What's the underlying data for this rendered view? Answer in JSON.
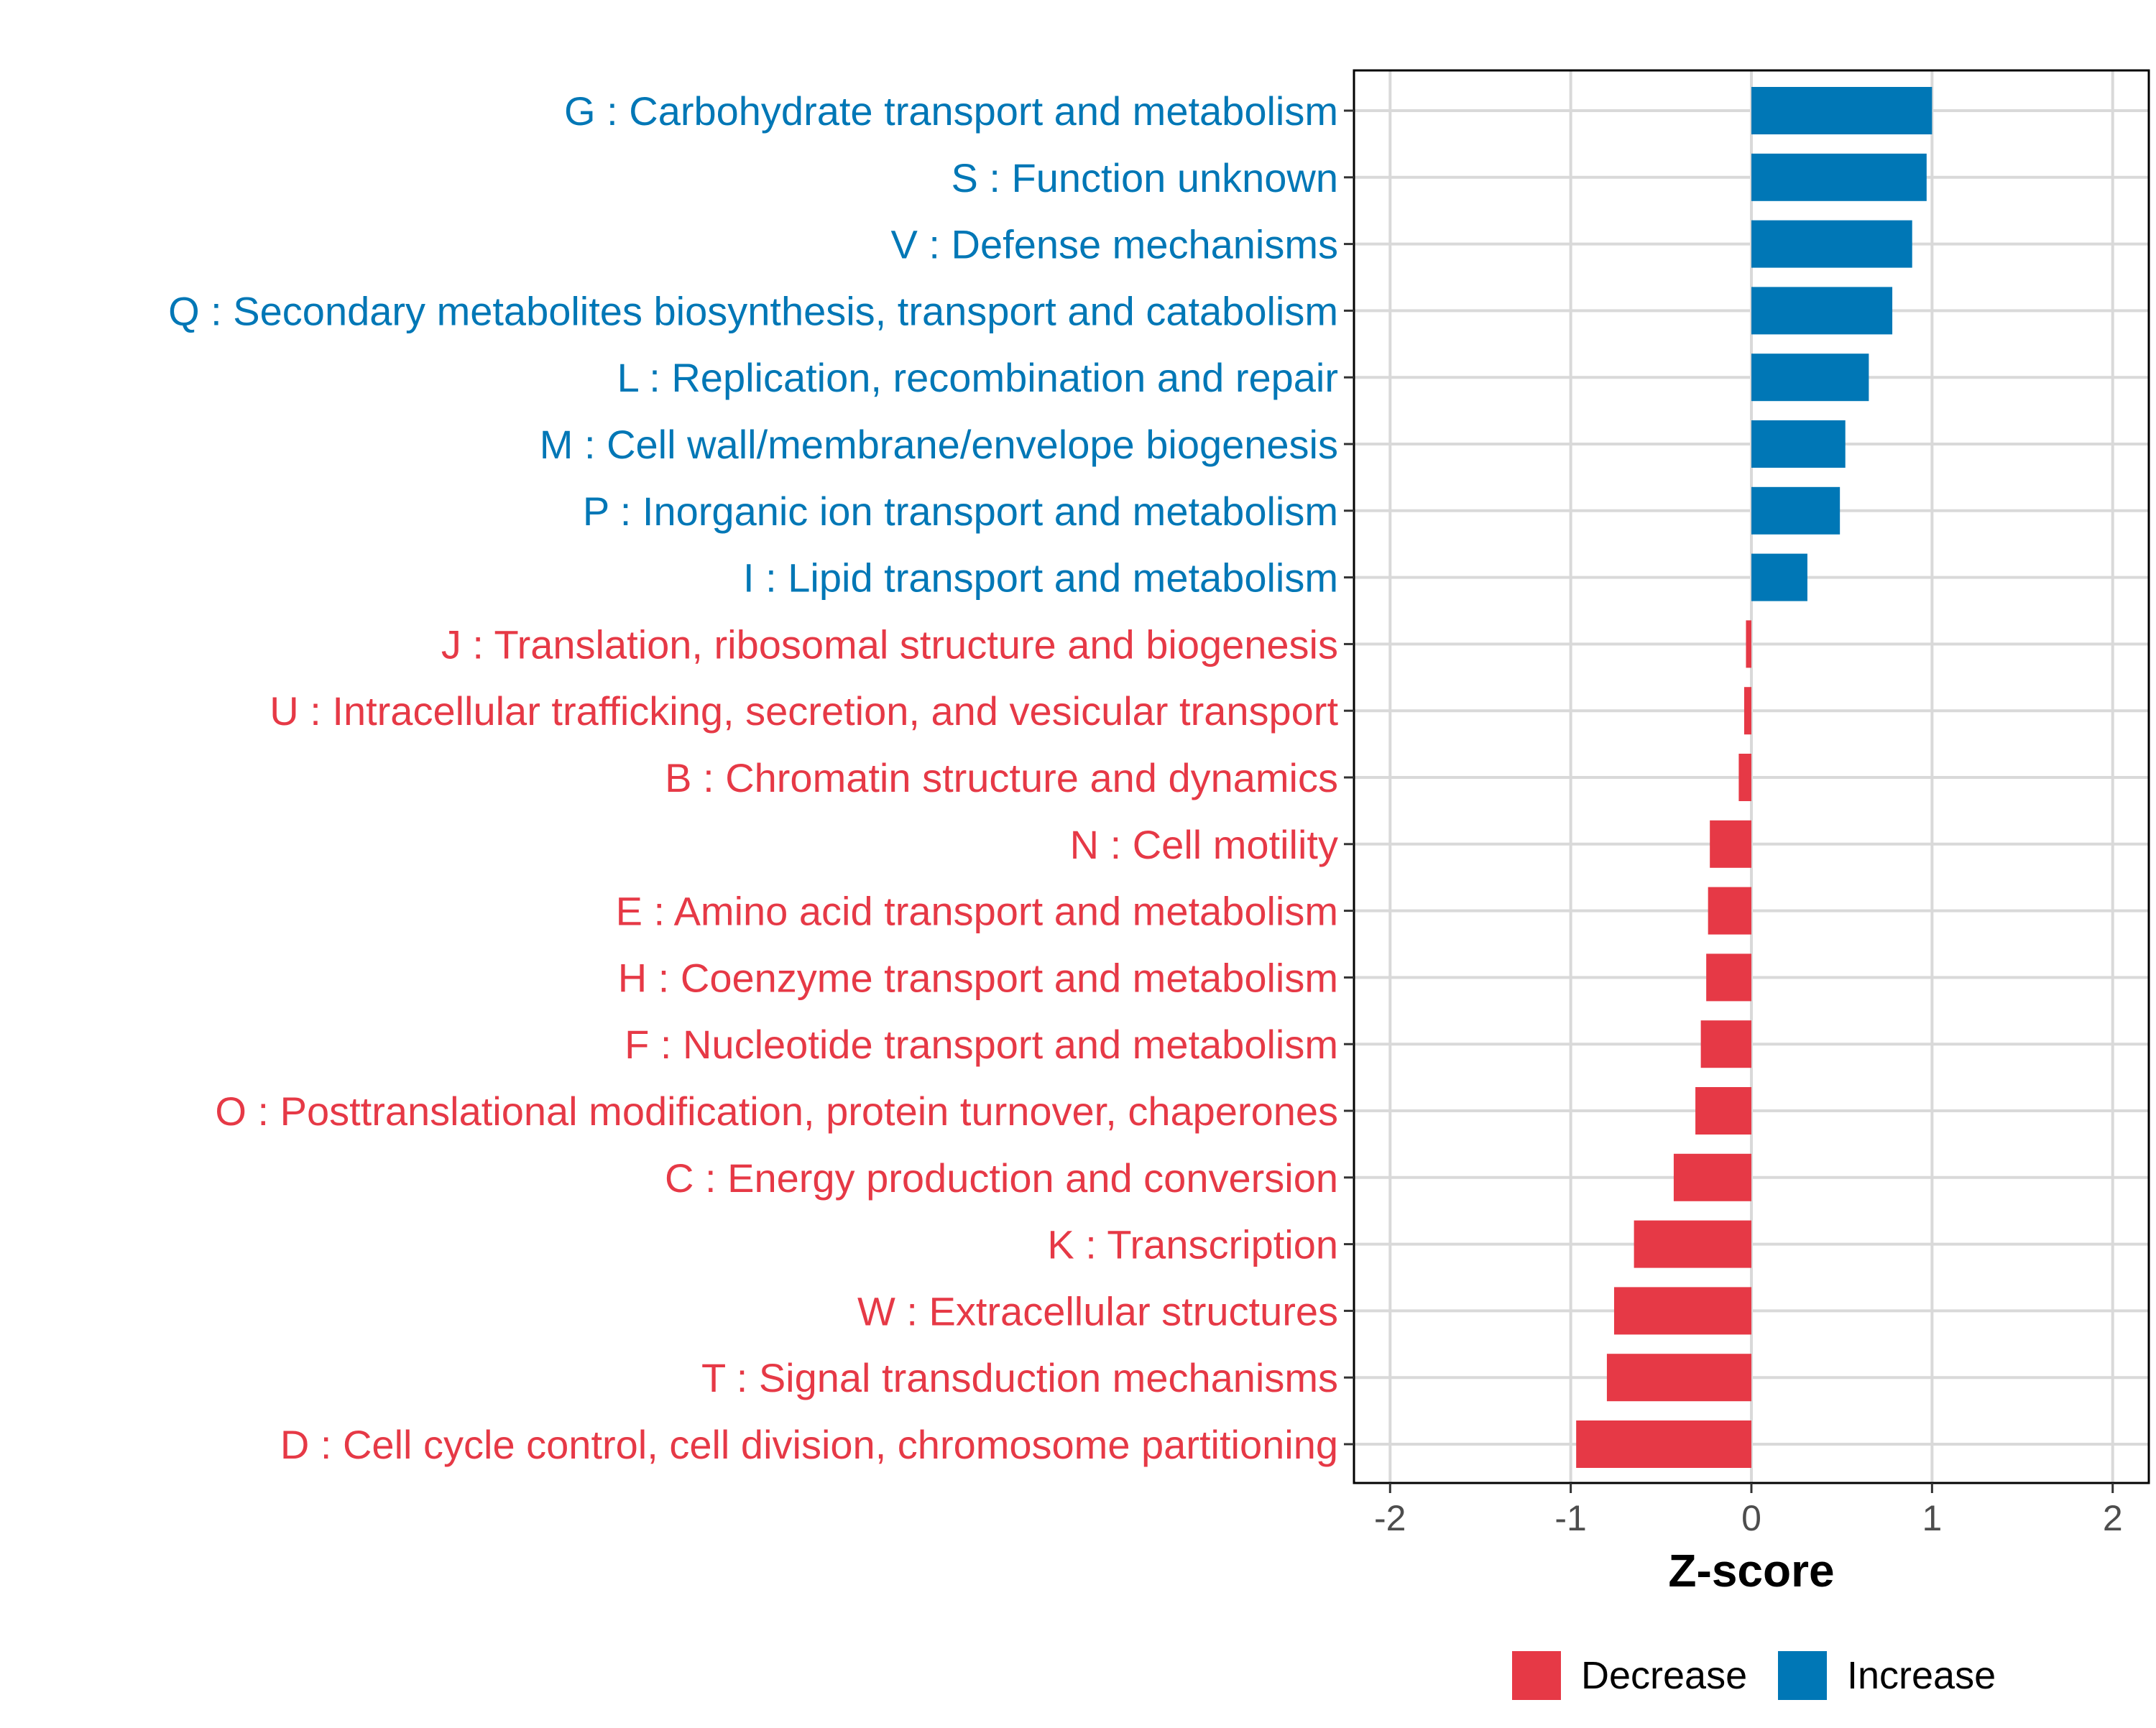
{
  "chart_data": {
    "type": "bar",
    "orientation": "horizontal",
    "title": "",
    "xlabel": "Z-score",
    "ylabel": "",
    "xlim": [
      -2.2,
      2.2
    ],
    "xticks": [
      -2,
      -1,
      0,
      1,
      2
    ],
    "xtick_labels": [
      "-2",
      "-1",
      "0",
      "1",
      "2"
    ],
    "grid": true,
    "legend_position": "bottom",
    "colors": {
      "Decrease": "#E63946",
      "Increase": "#0077B6"
    },
    "legend": [
      {
        "name": "Decrease",
        "color": "#E63946"
      },
      {
        "name": "Increase",
        "color": "#0077B6"
      }
    ],
    "categories": [
      "G : Carbohydrate transport and metabolism",
      "S : Function unknown",
      "V : Defense mechanisms",
      "Q : Secondary metabolites biosynthesis, transport and catabolism",
      "L : Replication, recombination and repair",
      "M : Cell wall/membrane/envelope biogenesis",
      "P : Inorganic ion transport and metabolism",
      "I : Lipid transport and metabolism",
      "J : Translation, ribosomal structure and biogenesis",
      "U : Intracellular trafficking, secretion, and vesicular transport",
      "B : Chromatin structure and dynamics",
      "N : Cell motility",
      "E : Amino acid transport and metabolism",
      "H : Coenzyme transport and metabolism",
      "F : Nucleotide transport and metabolism",
      "O : Posttranslational modification, protein turnover, chaperones",
      "C : Energy production and conversion",
      "K : Transcription",
      "W : Extracellular structures",
      "T : Signal transduction mechanisms",
      "D : Cell cycle control, cell division, chromosome partitioning"
    ],
    "values": [
      1.0,
      0.97,
      0.89,
      0.78,
      0.65,
      0.52,
      0.49,
      0.31,
      -0.03,
      -0.04,
      -0.07,
      -0.23,
      -0.24,
      -0.25,
      -0.28,
      -0.31,
      -0.43,
      -0.65,
      -0.76,
      -0.8,
      -0.97
    ],
    "groups": [
      "Increase",
      "Increase",
      "Increase",
      "Increase",
      "Increase",
      "Increase",
      "Increase",
      "Increase",
      "Decrease",
      "Decrease",
      "Decrease",
      "Decrease",
      "Decrease",
      "Decrease",
      "Decrease",
      "Decrease",
      "Decrease",
      "Decrease",
      "Decrease",
      "Decrease",
      "Decrease"
    ]
  }
}
